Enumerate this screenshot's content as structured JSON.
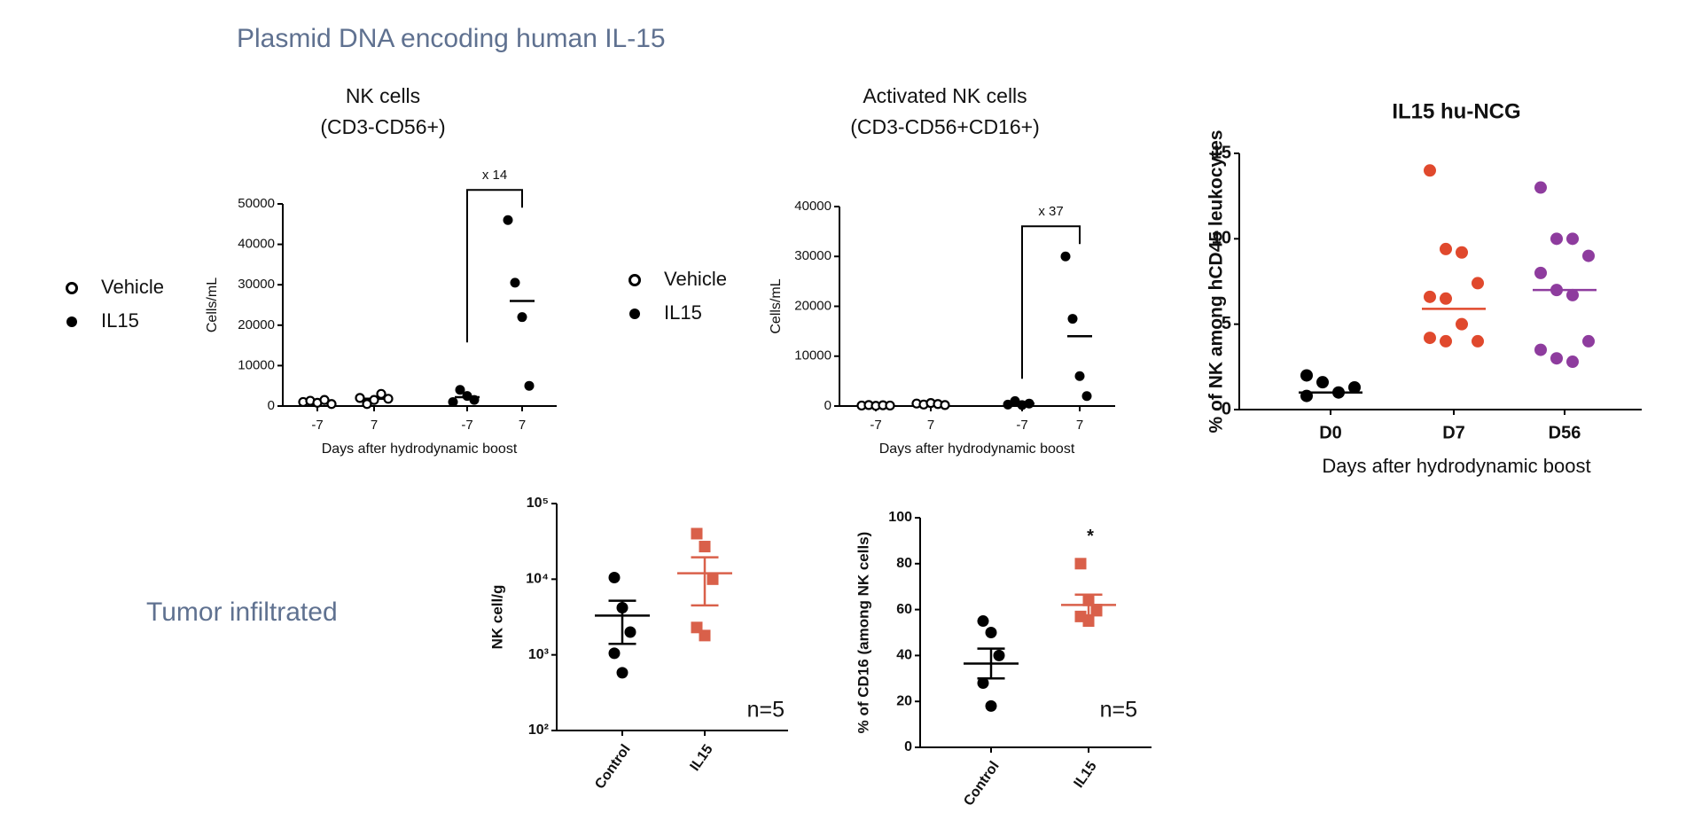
{
  "title": "Plasmid DNA encoding human IL-15",
  "section_label": "Tumor infiltrated",
  "chart_data": [
    {
      "type": "dot",
      "title": [
        "NK cells",
        "(CD3-CD56+)"
      ],
      "ylabel": "Cells/mL",
      "xlabel": "Days after hydrodynamic boost",
      "ylim": [
        0,
        50000
      ],
      "yticks": [
        0,
        10000,
        20000,
        30000,
        40000,
        50000
      ],
      "legend": true,
      "fold_change": "x 14",
      "series": [
        {
          "name": "Vehicle",
          "color": "#000000",
          "marker": "open-circle",
          "groups": [
            {
              "category": "-7",
              "values": [
                1000,
                1300,
                800,
                1500,
                500
              ],
              "mean": 1000
            },
            {
              "category": "7",
              "values": [
                2000,
                500,
                1500,
                3000,
                1800
              ],
              "mean": 1800
            }
          ]
        },
        {
          "name": "IL15",
          "color": "#000000",
          "marker": "circle",
          "groups": [
            {
              "category": "-7",
              "values": [
                1000,
                4000,
                2500,
                1500
              ],
              "mean": 2200
            },
            {
              "category": "7",
              "values": [
                46000,
                30500,
                22000,
                5000
              ],
              "mean": 26000
            }
          ]
        }
      ]
    },
    {
      "type": "dot",
      "title": [
        "Activated NK cells",
        "(CD3-CD56+CD16+)"
      ],
      "ylabel": "Cells/mL",
      "xlabel": "Days after hydrodynamic boost",
      "ylim": [
        0,
        40000
      ],
      "yticks": [
        0,
        10000,
        20000,
        30000,
        40000
      ],
      "legend": true,
      "fold_change": "x 37",
      "series": [
        {
          "name": "Vehicle",
          "color": "#000000",
          "marker": "open-circle",
          "groups": [
            {
              "category": "-7",
              "values": [
                100,
                200,
                50,
                150,
                100
              ],
              "mean": 120
            },
            {
              "category": "7",
              "values": [
                500,
                300,
                600,
                400,
                200
              ],
              "mean": 400
            }
          ]
        },
        {
          "name": "IL15",
          "color": "#000000",
          "marker": "circle",
          "groups": [
            {
              "category": "-7",
              "values": [
                300,
                1000,
                200,
                500
              ],
              "mean": 500
            },
            {
              "category": "7",
              "values": [
                30000,
                17500,
                6000,
                2000
              ],
              "mean": 14000
            }
          ]
        }
      ]
    },
    {
      "type": "dot",
      "title": [
        "IL15 hu-NCG"
      ],
      "ylabel": "% of NK among hCD45 leukocytes",
      "xlabel": "Days after hydrodynamic boost",
      "ylim": [
        0,
        15
      ],
      "yticks": [
        0,
        5,
        10,
        15
      ],
      "groups": [
        {
          "category": "D0",
          "color": "#000000",
          "marker": "circle",
          "values": [
            0.8,
            1.6,
            1.0,
            1.3,
            2.0
          ],
          "mean": 1
        },
        {
          "category": "D7",
          "color": "#e0492d",
          "marker": "circle",
          "values": [
            14,
            9.4,
            9.2,
            7.4,
            6.6,
            6.5,
            5,
            4,
            4.2,
            4
          ],
          "mean": 5.9
        },
        {
          "category": "D56",
          "color": "#8e3c9e",
          "marker": "circle",
          "values": [
            13,
            10,
            10,
            9,
            8,
            7,
            6.7,
            4,
            3.5,
            3,
            2.8
          ],
          "mean": 7
        }
      ]
    },
    {
      "type": "dot",
      "ylabel": "NK cell/g",
      "log": true,
      "ylim": [
        100,
        100000
      ],
      "yticks": [
        {
          "value": 100,
          "label": "10²"
        },
        {
          "value": 1000,
          "label": "10³"
        },
        {
          "value": 10000,
          "label": "10⁴"
        },
        {
          "value": 100000,
          "label": "10⁵"
        }
      ],
      "n_label": "n=5",
      "groups": [
        {
          "category": "Control",
          "color": "#000000",
          "marker": "circle",
          "values": [
            10500,
            4200,
            2000,
            1050,
            580
          ],
          "mean": 3300,
          "sem": 1900
        },
        {
          "category": "IL15",
          "color": "#d9604a",
          "marker": "square",
          "values": [
            40000,
            27000,
            10000,
            2300,
            1800
          ],
          "mean": 12000,
          "sem": 7500
        }
      ]
    },
    {
      "type": "dot",
      "ylabel": "% of CD16 (among NK cells)",
      "ylim": [
        0,
        100
      ],
      "yticks": [
        0,
        20,
        40,
        60,
        80,
        100
      ],
      "n_label": "n=5",
      "groups": [
        {
          "category": "Control",
          "color": "#000000",
          "marker": "circle",
          "values": [
            55,
            50,
            40,
            28,
            18
          ],
          "mean": 36.5,
          "sem": 6.5
        },
        {
          "category": "IL15",
          "color": "#d9604a",
          "marker": "square",
          "values": [
            80,
            64,
            60,
            57,
            55
          ],
          "mean": 62,
          "sem": 4.5,
          "significance": "*"
        }
      ]
    }
  ]
}
